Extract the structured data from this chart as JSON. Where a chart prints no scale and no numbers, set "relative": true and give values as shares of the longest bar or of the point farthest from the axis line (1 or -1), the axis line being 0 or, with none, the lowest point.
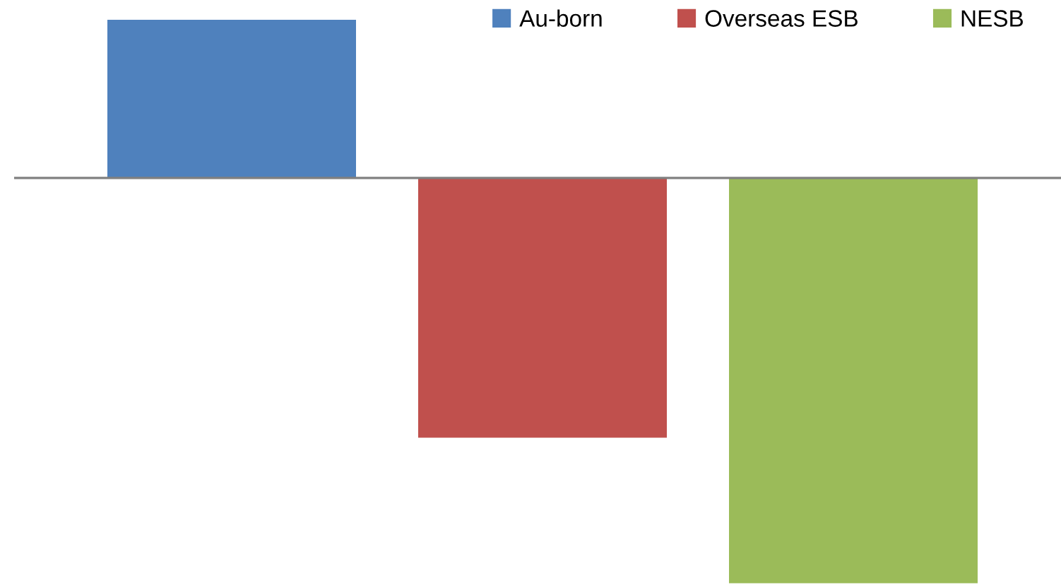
{
  "chart_data": {
    "type": "bar",
    "relative": true,
    "categories": [
      null
    ],
    "series": [
      {
        "name": "Au-born",
        "color": "#4f81bd",
        "values": [
          0.39
        ]
      },
      {
        "name": "Overseas ESB",
        "color": "#c0504d",
        "values": [
          -0.641
        ]
      },
      {
        "name": "NESB",
        "color": "#9bbb59",
        "values": [
          -1
        ]
      }
    ],
    "legend": "top right",
    "grid": false
  }
}
